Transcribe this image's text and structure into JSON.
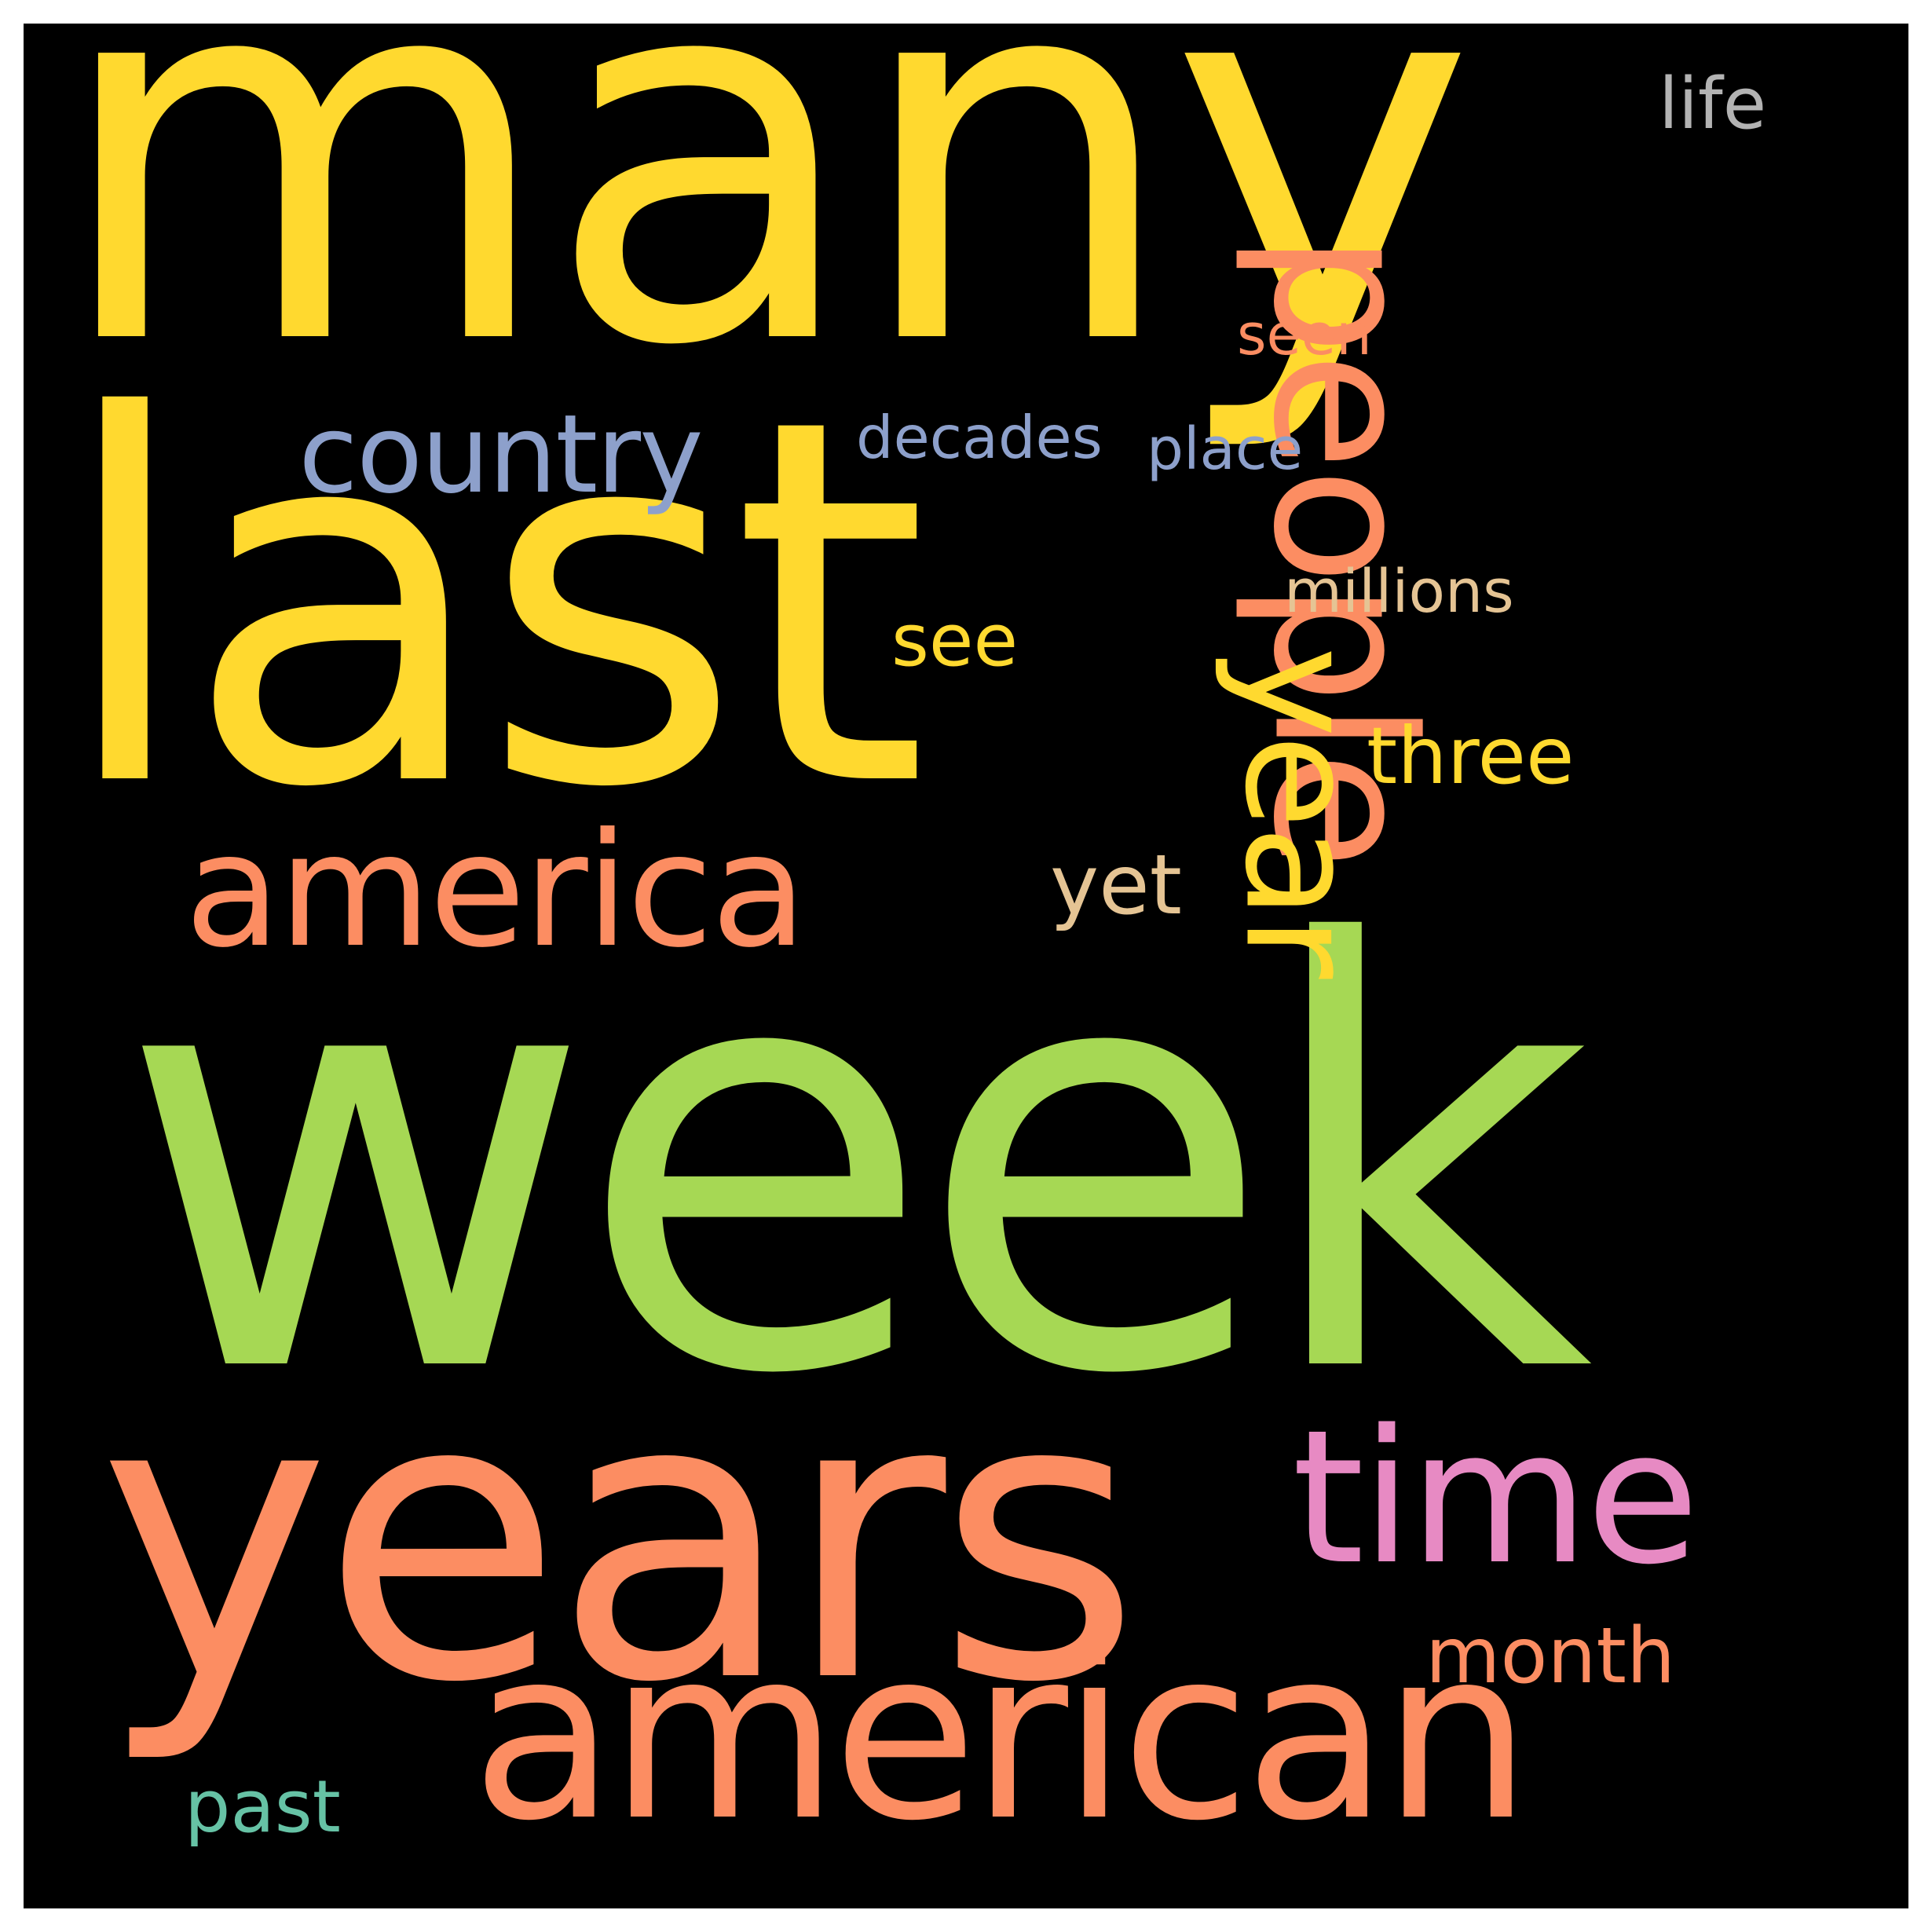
{
  "wordcloud": {
    "background": "#000000",
    "words": [
      {
        "text": "many",
        "color": "#ffd92f"
      },
      {
        "text": "last",
        "color": "#ffd92f"
      },
      {
        "text": "week",
        "color": "#a6d854"
      },
      {
        "text": "years",
        "color": "#fc8d62"
      },
      {
        "text": "american",
        "color": "#fc8d62"
      },
      {
        "text": "people",
        "color": "#fc8d62"
      },
      {
        "text": "year",
        "color": "#ffd92f"
      },
      {
        "text": "america",
        "color": "#fc8d62"
      },
      {
        "text": "time",
        "color": "#e78ac3"
      },
      {
        "text": "country",
        "color": "#8da0cb"
      },
      {
        "text": "three",
        "color": "#ffd92f"
      },
      {
        "text": "month",
        "color": "#fc8d62"
      },
      {
        "text": "see",
        "color": "#ffd92f"
      },
      {
        "text": "yet",
        "color": "#e5c494"
      },
      {
        "text": "millions",
        "color": "#e5c494"
      },
      {
        "text": "decades",
        "color": "#8da0cb"
      },
      {
        "text": "place",
        "color": "#8da0cb"
      },
      {
        "text": "life",
        "color": "#b3b3b3"
      },
      {
        "text": "seen",
        "color": "#fc8d62"
      },
      {
        "text": "past",
        "color": "#66c2a5"
      }
    ]
  }
}
